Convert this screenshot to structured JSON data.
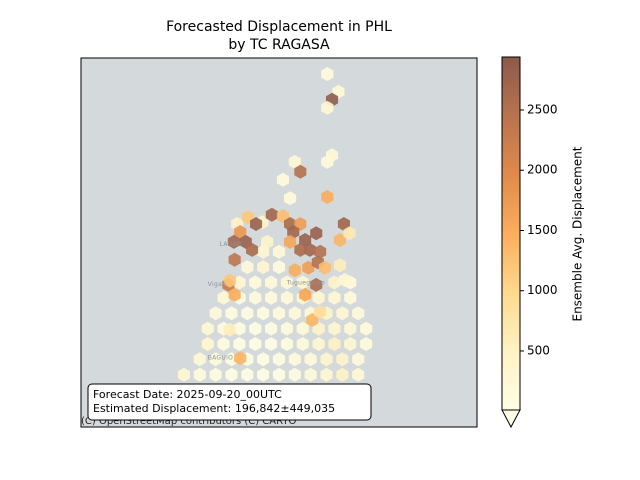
{
  "title": "Forecasted Displacement in PHL",
  "subtitle": "by TC RAGASA",
  "map": {
    "lon_range": [
      119.0,
      124.0
    ],
    "lat_range": [
      15.0,
      21.0
    ],
    "background": "#d4dadc",
    "place_labels": [
      {
        "text": "LAOAG",
        "lon": 120.75,
        "lat": 17.97
      },
      {
        "text": "Vigan",
        "lon": 120.6,
        "lat": 17.32
      },
      {
        "text": "Tuguegarao",
        "lon": 121.6,
        "lat": 17.34
      },
      {
        "text": "BAGUIO",
        "lon": 120.6,
        "lat": 16.12
      }
    ],
    "attribution": "(C) OpenStreetMap contributors (C) CARTO",
    "hexes": [
      [
        121.3,
        17.85,
        300
      ],
      [
        121.5,
        17.85,
        250
      ],
      [
        121.1,
        17.6,
        200
      ],
      [
        121.3,
        17.6,
        350
      ],
      [
        121.5,
        17.6,
        150
      ],
      [
        121.0,
        17.35,
        300
      ],
      [
        121.2,
        17.35,
        150
      ],
      [
        121.4,
        17.35,
        200
      ],
      [
        121.6,
        17.35,
        250
      ],
      [
        121.8,
        17.35,
        300
      ],
      [
        122.2,
        17.35,
        400
      ],
      [
        122.4,
        17.35,
        200
      ],
      [
        120.8,
        17.1,
        250
      ],
      [
        121.0,
        17.1,
        100
      ],
      [
        121.2,
        17.1,
        120
      ],
      [
        121.4,
        17.1,
        150
      ],
      [
        121.6,
        17.1,
        200
      ],
      [
        121.8,
        17.1,
        350
      ],
      [
        122.0,
        17.1,
        300
      ],
      [
        122.2,
        17.1,
        250
      ],
      [
        122.4,
        17.1,
        150
      ],
      [
        120.7,
        16.85,
        200
      ],
      [
        120.9,
        16.85,
        100
      ],
      [
        121.1,
        16.85,
        80
      ],
      [
        121.3,
        16.85,
        100
      ],
      [
        121.5,
        16.85,
        150
      ],
      [
        121.7,
        16.85,
        200
      ],
      [
        121.9,
        16.85,
        250
      ],
      [
        122.1,
        16.85,
        400
      ],
      [
        122.3,
        16.85,
        300
      ],
      [
        122.5,
        16.85,
        200
      ],
      [
        120.6,
        16.6,
        250
      ],
      [
        120.8,
        16.6,
        120
      ],
      [
        121.0,
        16.6,
        80
      ],
      [
        121.2,
        16.6,
        60
      ],
      [
        121.4,
        16.6,
        80
      ],
      [
        121.6,
        16.6,
        120
      ],
      [
        121.8,
        16.6,
        200
      ],
      [
        122.0,
        16.6,
        400
      ],
      [
        122.2,
        16.6,
        350
      ],
      [
        122.4,
        16.6,
        250
      ],
      [
        122.6,
        16.6,
        150
      ],
      [
        120.6,
        16.35,
        300
      ],
      [
        120.8,
        16.35,
        100
      ],
      [
        121.0,
        16.35,
        60
      ],
      [
        121.2,
        16.35,
        50
      ],
      [
        121.4,
        16.35,
        60
      ],
      [
        121.6,
        16.35,
        100
      ],
      [
        121.8,
        16.35,
        150
      ],
      [
        122.0,
        16.35,
        300
      ],
      [
        122.2,
        16.35,
        450
      ],
      [
        122.4,
        16.35,
        300
      ],
      [
        122.6,
        16.35,
        150
      ],
      [
        120.5,
        16.1,
        250
      ],
      [
        120.7,
        16.1,
        150
      ],
      [
        120.9,
        16.1,
        80
      ],
      [
        121.1,
        16.1,
        50
      ],
      [
        121.3,
        16.1,
        50
      ],
      [
        121.5,
        16.1,
        80
      ],
      [
        121.7,
        16.1,
        120
      ],
      [
        121.9,
        16.1,
        200
      ],
      [
        122.1,
        16.1,
        350
      ],
      [
        122.3,
        16.1,
        400
      ],
      [
        122.5,
        16.1,
        200
      ],
      [
        120.3,
        15.85,
        300
      ],
      [
        120.5,
        15.85,
        150
      ],
      [
        120.7,
        15.85,
        100
      ],
      [
        120.9,
        15.85,
        60
      ],
      [
        121.1,
        15.85,
        50
      ],
      [
        121.3,
        15.85,
        50
      ],
      [
        121.5,
        15.85,
        60
      ],
      [
        121.7,
        15.85,
        100
      ],
      [
        121.9,
        15.85,
        200
      ],
      [
        122.1,
        15.85,
        300
      ],
      [
        122.3,
        15.85,
        450
      ],
      [
        122.5,
        15.85,
        250
      ],
      [
        120.2,
        15.6,
        200
      ],
      [
        120.4,
        15.6,
        150
      ],
      [
        120.6,
        15.6,
        100
      ],
      [
        120.8,
        15.6,
        70
      ],
      [
        121.0,
        15.6,
        50
      ],
      [
        121.2,
        15.6,
        50
      ],
      [
        121.4,
        15.6,
        60
      ],
      [
        121.6,
        15.6,
        80
      ],
      [
        121.8,
        15.6,
        150
      ],
      [
        122.0,
        15.6,
        250
      ],
      [
        122.2,
        15.6,
        400
      ],
      [
        122.4,
        15.6,
        300
      ],
      [
        120.4,
        15.35,
        150
      ],
      [
        120.6,
        15.35,
        100
      ],
      [
        120.8,
        15.35,
        80
      ],
      [
        121.0,
        15.35,
        60
      ],
      [
        121.2,
        15.35,
        50
      ],
      [
        121.4,
        15.35,
        60
      ],
      [
        121.6,
        15.35,
        80
      ],
      [
        121.8,
        15.35,
        120
      ],
      [
        122.0,
        15.35,
        200
      ],
      [
        122.2,
        15.35,
        300
      ],
      [
        122.11,
        20.74,
        150
      ],
      [
        122.25,
        20.45,
        250
      ],
      [
        122.17,
        20.32,
        2900
      ],
      [
        122.11,
        20.19,
        300
      ],
      [
        121.7,
        19.31,
        300
      ],
      [
        121.77,
        19.15,
        2500
      ],
      [
        122.17,
        19.42,
        250
      ],
      [
        122.11,
        19.31,
        200
      ],
      [
        121.55,
        19.02,
        150
      ],
      [
        121.64,
        18.72,
        150
      ],
      [
        122.11,
        18.74,
        1500
      ],
      [
        120.97,
        18.3,
        400
      ],
      [
        121.11,
        18.41,
        1200
      ],
      [
        121.29,
        18.33,
        400
      ],
      [
        121.41,
        18.45,
        2700
      ],
      [
        121.55,
        18.43,
        1300
      ],
      [
        121.64,
        18.3,
        2600
      ],
      [
        121.77,
        18.3,
        1700
      ],
      [
        121.01,
        18.17,
        1800
      ],
      [
        121.21,
        18.3,
        2800
      ],
      [
        121.08,
        18.01,
        2800
      ],
      [
        120.93,
        18.01,
        2700
      ],
      [
        121.16,
        17.88,
        2600
      ],
      [
        121.68,
        18.17,
        2700
      ],
      [
        121.83,
        18.04,
        2800
      ],
      [
        121.97,
        18.15,
        2800
      ],
      [
        121.64,
        18.01,
        1600
      ],
      [
        121.89,
        17.88,
        2700
      ],
      [
        122.02,
        17.85,
        2500
      ],
      [
        121.77,
        17.88,
        2600
      ],
      [
        122.32,
        18.3,
        2700
      ],
      [
        122.27,
        18.04,
        1400
      ],
      [
        122.39,
        18.15,
        700
      ],
      [
        120.94,
        17.72,
        2400
      ],
      [
        121.35,
        18.01,
        400
      ],
      [
        121.7,
        17.55,
        1500
      ],
      [
        121.87,
        17.59,
        1700
      ],
      [
        121.99,
        17.68,
        2500
      ],
      [
        122.08,
        17.59,
        1300
      ],
      [
        120.86,
        17.31,
        2300
      ],
      [
        120.94,
        17.15,
        1500
      ],
      [
        120.88,
        17.38,
        1200
      ],
      [
        121.97,
        17.31,
        2600
      ],
      [
        121.83,
        17.15,
        1600
      ],
      [
        121.92,
        16.74,
        1400
      ],
      [
        122.02,
        16.87,
        900
      ],
      [
        121.01,
        16.12,
        1400
      ],
      [
        120.88,
        16.58,
        600
      ],
      [
        122.27,
        17.63,
        600
      ],
      [
        122.33,
        17.39,
        300
      ]
    ]
  },
  "colorbar": {
    "label": "Ensemble Avg. Displacement",
    "range": [
      10,
      2940
    ],
    "ticks": [
      500,
      1000,
      1500,
      2000,
      2500
    ],
    "colormap": [
      "#fffee6",
      "#fff2c4",
      "#fed98e",
      "#fbae5c",
      "#e08a4c",
      "#b8734f",
      "#8b5a4b"
    ]
  },
  "annotation": {
    "line1": "Forecast Date: 2025-09-20_00UTC",
    "line2": "Estimated Displacement: 196,842±449,035"
  }
}
